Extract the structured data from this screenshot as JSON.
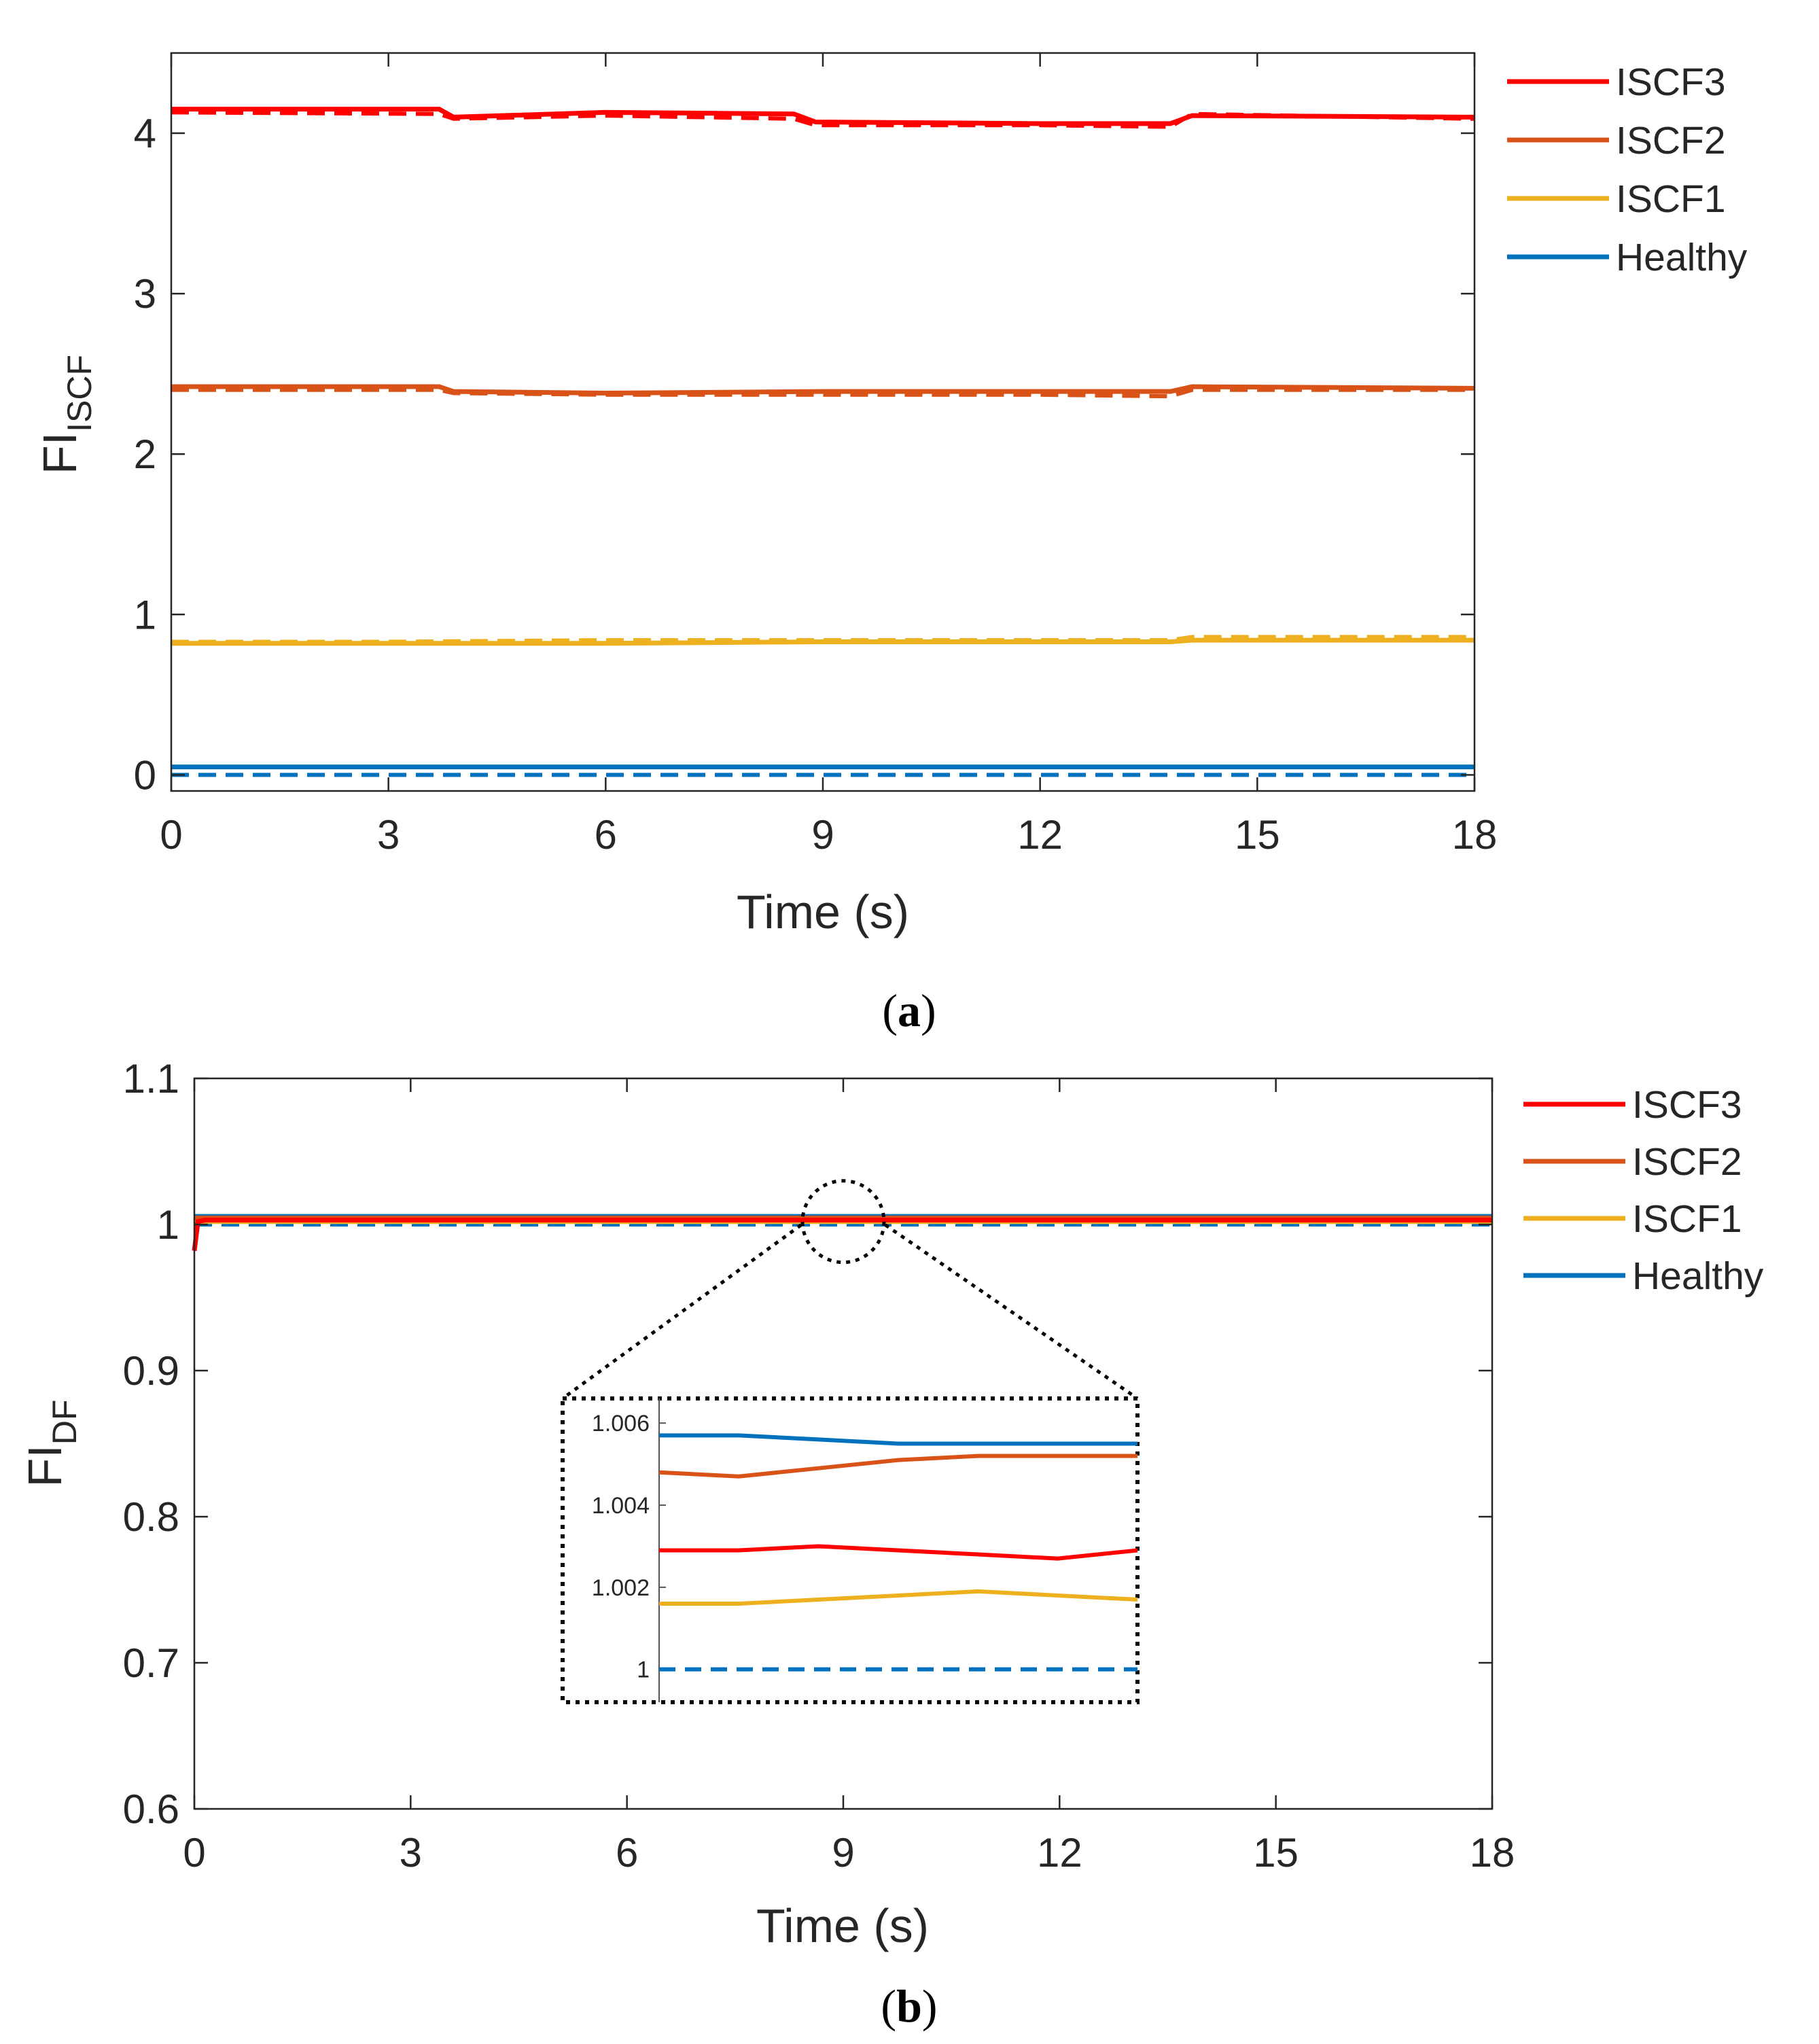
{
  "chart_data": [
    {
      "id": "a",
      "type": "line",
      "caption_letter": "a",
      "xlabel": "Time (s)",
      "ylabel_main": "FI",
      "ylabel_sub": "ISCF",
      "xlim": [
        0,
        18
      ],
      "ylim": [
        -0.1,
        4.5
      ],
      "xticks": [
        "0",
        "3",
        "6",
        "9",
        "12",
        "15",
        "18"
      ],
      "yticks": [
        "0",
        "1",
        "2",
        "3",
        "4"
      ],
      "legend_position": "outside-right-top",
      "series": [
        {
          "name": "ISCF3",
          "color": "#ff0000",
          "x": [
            0,
            3.7,
            3.9,
            6,
            8.6,
            8.9,
            12,
            13.8,
            14.1,
            18
          ],
          "solid": [
            4.15,
            4.15,
            4.1,
            4.13,
            4.12,
            4.07,
            4.06,
            4.06,
            4.11,
            4.1
          ],
          "dashed": [
            4.13,
            4.12,
            4.09,
            4.11,
            4.09,
            4.05,
            4.05,
            4.04,
            4.12,
            4.09
          ]
        },
        {
          "name": "ISCF2",
          "color": "#d95319",
          "x": [
            0,
            3.7,
            3.9,
            6,
            9,
            12,
            13.8,
            14.1,
            18
          ],
          "solid": [
            2.42,
            2.42,
            2.39,
            2.38,
            2.39,
            2.39,
            2.39,
            2.42,
            2.41
          ],
          "dashed": [
            2.4,
            2.4,
            2.38,
            2.37,
            2.37,
            2.37,
            2.36,
            2.4,
            2.4
          ]
        },
        {
          "name": "ISCF1",
          "color": "#edb120",
          "x": [
            0,
            3,
            6,
            9,
            12,
            13.8,
            14.1,
            18
          ],
          "solid": [
            0.82,
            0.82,
            0.82,
            0.83,
            0.83,
            0.83,
            0.84,
            0.84
          ],
          "dashed": [
            0.83,
            0.83,
            0.84,
            0.84,
            0.84,
            0.84,
            0.86,
            0.86
          ]
        },
        {
          "name": "Healthy",
          "color": "#0072bd",
          "x": [
            0,
            18
          ],
          "solid": [
            0.05,
            0.05
          ],
          "dashed": [
            0.0,
            0.0
          ]
        }
      ]
    },
    {
      "id": "b",
      "type": "line",
      "caption_letter": "b",
      "xlabel": "Time (s)",
      "ylabel_main": "FI",
      "ylabel_sub": "DF",
      "xlim": [
        0,
        18
      ],
      "ylim": [
        0.6,
        1.1
      ],
      "xticks": [
        "0",
        "3",
        "6",
        "9",
        "12",
        "15",
        "18"
      ],
      "yticks": [
        "0.6",
        "0.7",
        "0.8",
        "0.9",
        "1",
        "1.1"
      ],
      "legend_position": "outside-right-top",
      "series": [
        {
          "name": "ISCF3",
          "color": "#ff0000",
          "x": [
            0,
            0.05,
            0.15,
            18
          ],
          "solid": [
            0.982,
            1.002,
            1.003,
            1.003
          ]
        },
        {
          "name": "ISCF2",
          "color": "#d95319",
          "x": [
            0,
            18
          ],
          "solid": [
            1.0045,
            1.0045
          ]
        },
        {
          "name": "ISCF1",
          "color": "#edb120",
          "x": [
            0,
            18
          ],
          "solid": [
            1.002,
            1.002
          ]
        },
        {
          "name": "Healthy",
          "color": "#0072bd",
          "x": [
            0,
            18
          ],
          "solid": [
            1.0055,
            1.0055
          ],
          "dashed": [
            1.0,
            1.0
          ]
        }
      ],
      "inset": {
        "zoom_center_x": 9,
        "zoom_center_y": 1.002,
        "ylim": [
          0.9992,
          1.0066
        ],
        "yticks": [
          "1",
          "1.002",
          "1.004",
          "1.006"
        ],
        "series": [
          {
            "name": "Healthy",
            "color": "#0072bd",
            "values": [
              1.0057,
              1.0057,
              1.0056,
              1.0055,
              1.0055,
              1.0055,
              1.0055
            ]
          },
          {
            "name": "ISCF2",
            "color": "#d95319",
            "values": [
              1.0048,
              1.0047,
              1.0049,
              1.0051,
              1.0052,
              1.0052,
              1.0052
            ]
          },
          {
            "name": "ISCF3",
            "color": "#ff0000",
            "values": [
              1.0029,
              1.0029,
              1.003,
              1.0029,
              1.0028,
              1.0027,
              1.0029
            ]
          },
          {
            "name": "ISCF1",
            "color": "#edb120",
            "values": [
              1.0016,
              1.0016,
              1.0017,
              1.0018,
              1.0019,
              1.0018,
              1.0017
            ]
          },
          {
            "name": "Healthy",
            "color": "#0072bd",
            "dashed": true,
            "values": [
              1.0,
              1.0,
              1.0,
              1.0,
              1.0,
              1.0,
              1.0
            ]
          }
        ]
      }
    }
  ]
}
